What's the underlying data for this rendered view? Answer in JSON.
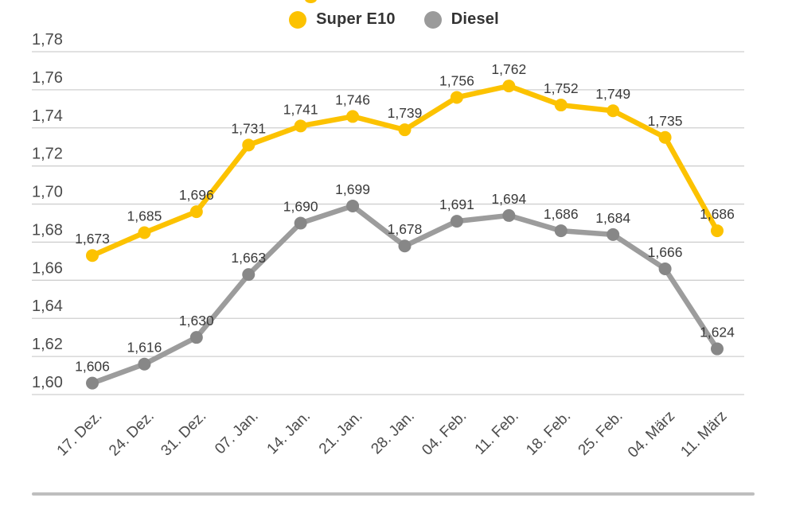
{
  "legend": {
    "items": [
      {
        "label": "Super E10",
        "color": "#FCC200"
      },
      {
        "label": "Diesel",
        "color": "#9A9A9A"
      }
    ]
  },
  "chart_data": {
    "type": "line",
    "title": "",
    "xlabel": "",
    "ylabel": "",
    "categories": [
      "17. Dez.",
      "24. Dez.",
      "31. Dez.",
      "07. Jan.",
      "14. Jan.",
      "21. Jan.",
      "28. Jan.",
      "04. Feb.",
      "11. Feb.",
      "18. Feb.",
      "25. Feb.",
      "04. März",
      "11. März"
    ],
    "series": [
      {
        "name": "Super E10",
        "color": "#FCC200",
        "point_color": "#FCC200",
        "values": [
          1.673,
          1.685,
          1.696,
          1.731,
          1.741,
          1.746,
          1.739,
          1.756,
          1.762,
          1.752,
          1.749,
          1.735,
          1.686
        ],
        "point_labels": [
          "1,673",
          "1,685",
          "1,696",
          "1,731",
          "1,741",
          "1,746",
          "1,739",
          "1,756",
          "1,762",
          "1,752",
          "1,749",
          "1,735",
          "1,686"
        ]
      },
      {
        "name": "Diesel",
        "color": "#9C9C9C",
        "point_color": "#878787",
        "values": [
          1.606,
          1.616,
          1.63,
          1.663,
          1.69,
          1.699,
          1.678,
          1.691,
          1.694,
          1.686,
          1.684,
          1.666,
          1.624
        ],
        "point_labels": [
          "1,606",
          "1,616",
          "1,630",
          "1,663",
          "1,690",
          "1,699",
          "1,678",
          "1,691",
          "1,694",
          "1,686",
          "1,684",
          "1,666",
          "1,624"
        ]
      }
    ],
    "y_ticks": [
      {
        "value": 1.78,
        "label": "1,78"
      },
      {
        "value": 1.76,
        "label": "1,76"
      },
      {
        "value": 1.74,
        "label": "1,74"
      },
      {
        "value": 1.72,
        "label": "1,72"
      },
      {
        "value": 1.7,
        "label": "1,70"
      },
      {
        "value": 1.68,
        "label": "1,68"
      },
      {
        "value": 1.66,
        "label": "1,66"
      },
      {
        "value": 1.64,
        "label": "1,64"
      },
      {
        "value": 1.62,
        "label": "1,62"
      },
      {
        "value": 1.6,
        "label": "1,60"
      }
    ],
    "ylim": [
      1.6,
      1.78
    ],
    "grid": true,
    "legend_position": "top-center",
    "decimal_separator": ","
  },
  "styles": {
    "background": "#FFFFFF",
    "grid_color": "#CFCFCF",
    "axis_label_color": "#4B4B4B",
    "point_label_color": "#3A3A3A",
    "footer_rule_color": "#BEBEBE"
  }
}
